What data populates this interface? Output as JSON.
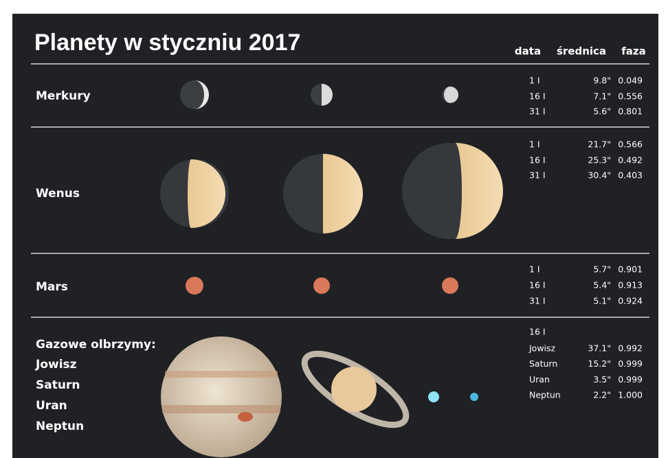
{
  "header": {
    "title": "Planety w styczniu 2017",
    "columns": [
      "data",
      "średnica",
      "faza"
    ]
  },
  "sections": [
    {
      "name": "Merkury",
      "rows": [
        [
          "1 I",
          "9.8\"",
          "0.049"
        ],
        [
          "16 I",
          "7.1\"",
          "0.556"
        ],
        [
          "31 I",
          "5.6\"",
          "0.801"
        ]
      ]
    },
    {
      "name": "Wenus",
      "rows": [
        [
          "1 I",
          "21.7\"",
          "0.566"
        ],
        [
          "16 I",
          "25.3\"",
          "0.492"
        ],
        [
          "31 I",
          "30.4\"",
          "0.403"
        ]
      ]
    },
    {
      "name": "Mars",
      "rows": [
        [
          "1 I",
          "5.7\"",
          "0.901"
        ],
        [
          "16 I",
          "5.4\"",
          "0.913"
        ],
        [
          "31 I",
          "5.1\"",
          "0.924"
        ]
      ]
    }
  ],
  "gas_giants": {
    "name": "Gazowe olbrzymy:",
    "date": "16 I",
    "planets": [
      {
        "name": "Jowisz",
        "diameter": "37.1\"",
        "phase": "0.992"
      },
      {
        "name": "Saturn",
        "diameter": "15.2\"",
        "phase": "0.999"
      },
      {
        "name": "Uran",
        "diameter": "3.5\"",
        "phase": "0.999"
      },
      {
        "name": "Neptun",
        "diameter": "2.2\"",
        "phase": "1.000"
      }
    ]
  }
}
